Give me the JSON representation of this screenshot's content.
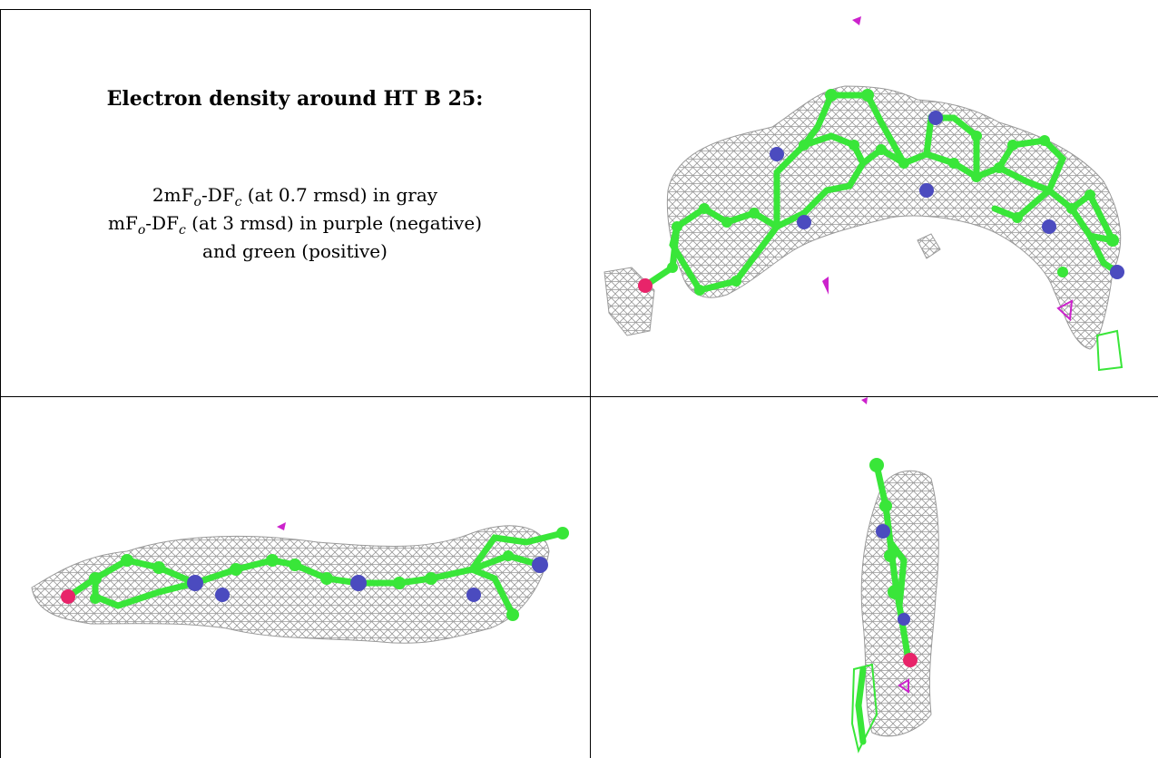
{
  "caption": {
    "title": "Electron density around HT B 25:",
    "line1": {
      "a": "2mF",
      "o": "o",
      "b": "-DF",
      "c": "c",
      "rest": " (at 0.7 rmsd) in gray"
    },
    "line2": {
      "a": "mF",
      "o": "o",
      "b": "-DF",
      "c": "c",
      "rest": " (at 3 rmsd) in purple (negative)"
    },
    "line3": "and green (positive)"
  },
  "colors": {
    "carbon": "#39e639",
    "nitrogen": "#4b4bbf",
    "oxygen": "#e8246a",
    "mesh": "#9a9a9a",
    "negative": "#cc22cc",
    "positive": "#39e639"
  },
  "panels": [
    {
      "view": "top"
    },
    {
      "view": "side"
    },
    {
      "view": "end"
    }
  ]
}
